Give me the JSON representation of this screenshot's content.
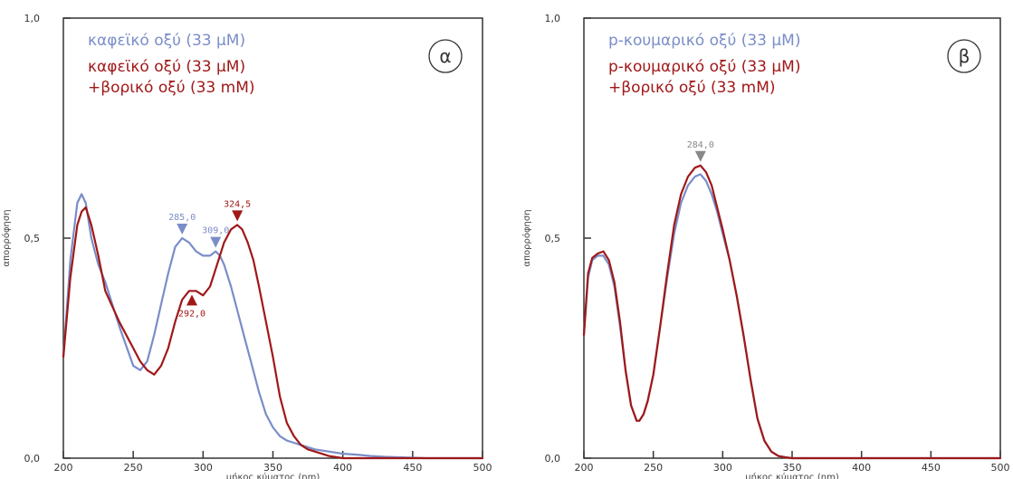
{
  "colors": {
    "blue": "#7a8dc8",
    "red": "#a01818",
    "grey": "#888888",
    "axis": "#333333"
  },
  "chart_data": [
    {
      "type": "line",
      "badge": "α",
      "xlabel": "μήκος κύματος (nm)",
      "ylabel": "απορρόφηση",
      "xlim": [
        200,
        500
      ],
      "ylim": [
        0,
        1
      ],
      "xticks": [
        200,
        250,
        300,
        350,
        400,
        450,
        500
      ],
      "yticks": [
        {
          "v": 0,
          "label": "0,0"
        },
        {
          "v": 0.5,
          "label": "0,5"
        },
        {
          "v": 1,
          "label": "1,0"
        }
      ],
      "legend": [
        {
          "lines": [
            "καφεϊκό οξύ (33 μΜ)"
          ],
          "color": "#7a8dc8"
        },
        {
          "lines": [
            "καφεϊκό οξύ (33 μΜ)",
            "+βορικό οξύ (33 mM)"
          ],
          "color": "#a01818"
        }
      ],
      "series": [
        {
          "color": "#7a8dc8",
          "x": [
            200,
            205,
            210,
            213,
            216,
            220,
            225,
            230,
            240,
            250,
            255,
            260,
            265,
            270,
            275,
            280,
            285,
            290,
            295,
            300,
            305,
            309,
            312,
            315,
            320,
            325,
            330,
            335,
            340,
            345,
            350,
            355,
            360,
            365,
            370,
            380,
            390,
            400,
            410,
            420,
            430,
            440,
            450,
            460,
            470,
            480,
            490,
            500
          ],
          "y": [
            0.23,
            0.45,
            0.58,
            0.6,
            0.58,
            0.5,
            0.44,
            0.4,
            0.3,
            0.21,
            0.2,
            0.22,
            0.28,
            0.35,
            0.42,
            0.48,
            0.5,
            0.49,
            0.47,
            0.46,
            0.46,
            0.47,
            0.46,
            0.44,
            0.39,
            0.33,
            0.27,
            0.21,
            0.15,
            0.1,
            0.07,
            0.05,
            0.04,
            0.035,
            0.03,
            0.02,
            0.015,
            0.01,
            0.008,
            0.005,
            0.003,
            0.002,
            0.001,
            0,
            0,
            0,
            0,
            0
          ]
        },
        {
          "color": "#a01818",
          "x": [
            200,
            205,
            210,
            213,
            216,
            220,
            225,
            230,
            240,
            250,
            255,
            260,
            265,
            270,
            275,
            280,
            285,
            290,
            292,
            295,
            300,
            305,
            310,
            315,
            320,
            324.5,
            328,
            332,
            336,
            340,
            345,
            350,
            355,
            360,
            365,
            370,
            375,
            380,
            385,
            390,
            400,
            410,
            420,
            430,
            440,
            450,
            460,
            470,
            480,
            490,
            500
          ],
          "y": [
            0.23,
            0.41,
            0.53,
            0.56,
            0.57,
            0.53,
            0.46,
            0.38,
            0.31,
            0.25,
            0.22,
            0.2,
            0.19,
            0.21,
            0.25,
            0.31,
            0.36,
            0.38,
            0.38,
            0.38,
            0.37,
            0.39,
            0.44,
            0.49,
            0.52,
            0.53,
            0.52,
            0.49,
            0.45,
            0.39,
            0.31,
            0.23,
            0.14,
            0.08,
            0.05,
            0.03,
            0.02,
            0.015,
            0.01,
            0.005,
            0,
            0,
            0,
            0,
            0,
            0,
            0,
            0,
            0,
            0,
            0
          ]
        }
      ],
      "peaks": [
        {
          "label": "285,0",
          "x": 285,
          "y": 0.5,
          "color": "#7a8dc8",
          "dir": "down"
        },
        {
          "label": "309,0",
          "x": 309,
          "y": 0.47,
          "color": "#7a8dc8",
          "dir": "down"
        },
        {
          "label": "324,5",
          "x": 324.5,
          "y": 0.53,
          "color": "#a01818",
          "dir": "down"
        },
        {
          "label": "292,0",
          "x": 292,
          "y": 0.38,
          "color": "#a01818",
          "dir": "up"
        }
      ]
    },
    {
      "type": "line",
      "badge": "β",
      "xlabel": "μήκος κύματος (nm)",
      "ylabel": "απορρόφηση",
      "xlim": [
        200,
        500
      ],
      "ylim": [
        0,
        1
      ],
      "xticks": [
        200,
        250,
        300,
        350,
        400,
        450,
        500
      ],
      "yticks": [
        {
          "v": 0,
          "label": "0,0"
        },
        {
          "v": 0.5,
          "label": "0,5"
        },
        {
          "v": 1,
          "label": "1,0"
        }
      ],
      "legend": [
        {
          "lines": [
            "p-κουμαρικό οξύ (33 μΜ)"
          ],
          "color": "#7a8dc8"
        },
        {
          "lines": [
            "p-κουμαρικό οξύ (33 μΜ)",
            "+βορικό οξύ (33 mM)"
          ],
          "color": "#a01818"
        }
      ],
      "series": [
        {
          "color": "#7a8dc8",
          "x": [
            200,
            203,
            206,
            210,
            214,
            218,
            222,
            226,
            230,
            234,
            238,
            240,
            243,
            246,
            250,
            255,
            260,
            265,
            270,
            275,
            280,
            284,
            288,
            292,
            296,
            300,
            305,
            310,
            315,
            320,
            325,
            330,
            335,
            340,
            345,
            350,
            360,
            380,
            400,
            450,
            500
          ],
          "y": [
            0.28,
            0.41,
            0.45,
            0.46,
            0.46,
            0.44,
            0.39,
            0.3,
            0.2,
            0.12,
            0.085,
            0.085,
            0.1,
            0.13,
            0.19,
            0.3,
            0.41,
            0.51,
            0.58,
            0.62,
            0.64,
            0.645,
            0.63,
            0.6,
            0.56,
            0.51,
            0.45,
            0.37,
            0.28,
            0.18,
            0.09,
            0.04,
            0.015,
            0.005,
            0.002,
            0,
            0,
            0,
            0,
            0,
            0
          ]
        },
        {
          "color": "#a01818",
          "x": [
            200,
            203,
            206,
            210,
            214,
            218,
            222,
            226,
            230,
            234,
            238,
            240,
            243,
            246,
            250,
            255,
            260,
            265,
            270,
            275,
            280,
            284,
            288,
            292,
            296,
            300,
            305,
            310,
            315,
            320,
            325,
            330,
            335,
            340,
            345,
            350,
            360,
            380,
            400,
            450,
            500
          ],
          "y": [
            0.28,
            0.42,
            0.455,
            0.465,
            0.47,
            0.45,
            0.4,
            0.31,
            0.2,
            0.12,
            0.085,
            0.085,
            0.1,
            0.13,
            0.19,
            0.3,
            0.42,
            0.53,
            0.6,
            0.64,
            0.66,
            0.665,
            0.65,
            0.62,
            0.57,
            0.52,
            0.45,
            0.37,
            0.28,
            0.18,
            0.09,
            0.04,
            0.015,
            0.005,
            0.002,
            0,
            0,
            0,
            0,
            0,
            0
          ]
        }
      ],
      "peaks": [
        {
          "label": "284,0",
          "x": 284,
          "y": 0.665,
          "color": "#888888",
          "dir": "down"
        }
      ]
    }
  ]
}
